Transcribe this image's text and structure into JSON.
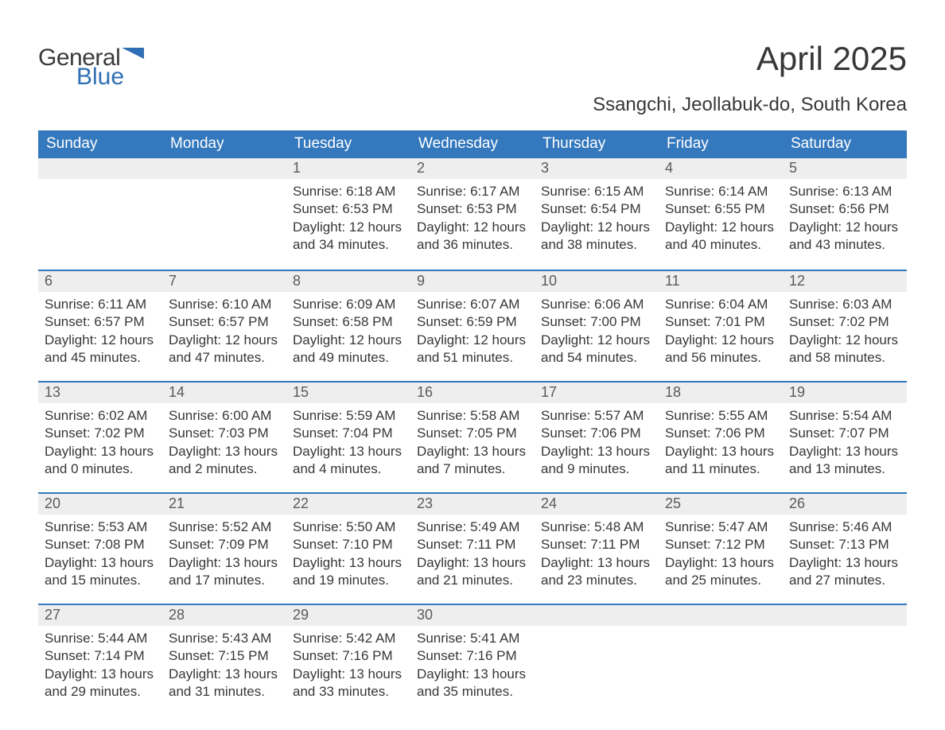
{
  "brand": {
    "general": "General",
    "blue": "Blue",
    "accent_color": "#2f6fb3"
  },
  "title": "April 2025",
  "subtitle": "Ssangchi, Jeollabuk-do, South Korea",
  "colors": {
    "header_bg": "#3478bd",
    "header_text": "#ffffff",
    "daynum_bg": "#eeeeee",
    "daynum_text": "#5a5a5a",
    "body_text": "#373737",
    "week_border": "#3478bd",
    "page_bg": "#ffffff"
  },
  "typography": {
    "title_fontsize": 42,
    "subtitle_fontsize": 24,
    "header_fontsize": 19,
    "daynum_fontsize": 18,
    "body_fontsize": 17
  },
  "day_headers": [
    "Sunday",
    "Monday",
    "Tuesday",
    "Wednesday",
    "Thursday",
    "Friday",
    "Saturday"
  ],
  "weeks": [
    [
      null,
      null,
      {
        "n": "1",
        "sunrise": "Sunrise: 6:18 AM",
        "sunset": "Sunset: 6:53 PM",
        "daylight": "Daylight: 12 hours and 34 minutes."
      },
      {
        "n": "2",
        "sunrise": "Sunrise: 6:17 AM",
        "sunset": "Sunset: 6:53 PM",
        "daylight": "Daylight: 12 hours and 36 minutes."
      },
      {
        "n": "3",
        "sunrise": "Sunrise: 6:15 AM",
        "sunset": "Sunset: 6:54 PM",
        "daylight": "Daylight: 12 hours and 38 minutes."
      },
      {
        "n": "4",
        "sunrise": "Sunrise: 6:14 AM",
        "sunset": "Sunset: 6:55 PM",
        "daylight": "Daylight: 12 hours and 40 minutes."
      },
      {
        "n": "5",
        "sunrise": "Sunrise: 6:13 AM",
        "sunset": "Sunset: 6:56 PM",
        "daylight": "Daylight: 12 hours and 43 minutes."
      }
    ],
    [
      {
        "n": "6",
        "sunrise": "Sunrise: 6:11 AM",
        "sunset": "Sunset: 6:57 PM",
        "daylight": "Daylight: 12 hours and 45 minutes."
      },
      {
        "n": "7",
        "sunrise": "Sunrise: 6:10 AM",
        "sunset": "Sunset: 6:57 PM",
        "daylight": "Daylight: 12 hours and 47 minutes."
      },
      {
        "n": "8",
        "sunrise": "Sunrise: 6:09 AM",
        "sunset": "Sunset: 6:58 PM",
        "daylight": "Daylight: 12 hours and 49 minutes."
      },
      {
        "n": "9",
        "sunrise": "Sunrise: 6:07 AM",
        "sunset": "Sunset: 6:59 PM",
        "daylight": "Daylight: 12 hours and 51 minutes."
      },
      {
        "n": "10",
        "sunrise": "Sunrise: 6:06 AM",
        "sunset": "Sunset: 7:00 PM",
        "daylight": "Daylight: 12 hours and 54 minutes."
      },
      {
        "n": "11",
        "sunrise": "Sunrise: 6:04 AM",
        "sunset": "Sunset: 7:01 PM",
        "daylight": "Daylight: 12 hours and 56 minutes."
      },
      {
        "n": "12",
        "sunrise": "Sunrise: 6:03 AM",
        "sunset": "Sunset: 7:02 PM",
        "daylight": "Daylight: 12 hours and 58 minutes."
      }
    ],
    [
      {
        "n": "13",
        "sunrise": "Sunrise: 6:02 AM",
        "sunset": "Sunset: 7:02 PM",
        "daylight": "Daylight: 13 hours and 0 minutes."
      },
      {
        "n": "14",
        "sunrise": "Sunrise: 6:00 AM",
        "sunset": "Sunset: 7:03 PM",
        "daylight": "Daylight: 13 hours and 2 minutes."
      },
      {
        "n": "15",
        "sunrise": "Sunrise: 5:59 AM",
        "sunset": "Sunset: 7:04 PM",
        "daylight": "Daylight: 13 hours and 4 minutes."
      },
      {
        "n": "16",
        "sunrise": "Sunrise: 5:58 AM",
        "sunset": "Sunset: 7:05 PM",
        "daylight": "Daylight: 13 hours and 7 minutes."
      },
      {
        "n": "17",
        "sunrise": "Sunrise: 5:57 AM",
        "sunset": "Sunset: 7:06 PM",
        "daylight": "Daylight: 13 hours and 9 minutes."
      },
      {
        "n": "18",
        "sunrise": "Sunrise: 5:55 AM",
        "sunset": "Sunset: 7:06 PM",
        "daylight": "Daylight: 13 hours and 11 minutes."
      },
      {
        "n": "19",
        "sunrise": "Sunrise: 5:54 AM",
        "sunset": "Sunset: 7:07 PM",
        "daylight": "Daylight: 13 hours and 13 minutes."
      }
    ],
    [
      {
        "n": "20",
        "sunrise": "Sunrise: 5:53 AM",
        "sunset": "Sunset: 7:08 PM",
        "daylight": "Daylight: 13 hours and 15 minutes."
      },
      {
        "n": "21",
        "sunrise": "Sunrise: 5:52 AM",
        "sunset": "Sunset: 7:09 PM",
        "daylight": "Daylight: 13 hours and 17 minutes."
      },
      {
        "n": "22",
        "sunrise": "Sunrise: 5:50 AM",
        "sunset": "Sunset: 7:10 PM",
        "daylight": "Daylight: 13 hours and 19 minutes."
      },
      {
        "n": "23",
        "sunrise": "Sunrise: 5:49 AM",
        "sunset": "Sunset: 7:11 PM",
        "daylight": "Daylight: 13 hours and 21 minutes."
      },
      {
        "n": "24",
        "sunrise": "Sunrise: 5:48 AM",
        "sunset": "Sunset: 7:11 PM",
        "daylight": "Daylight: 13 hours and 23 minutes."
      },
      {
        "n": "25",
        "sunrise": "Sunrise: 5:47 AM",
        "sunset": "Sunset: 7:12 PM",
        "daylight": "Daylight: 13 hours and 25 minutes."
      },
      {
        "n": "26",
        "sunrise": "Sunrise: 5:46 AM",
        "sunset": "Sunset: 7:13 PM",
        "daylight": "Daylight: 13 hours and 27 minutes."
      }
    ],
    [
      {
        "n": "27",
        "sunrise": "Sunrise: 5:44 AM",
        "sunset": "Sunset: 7:14 PM",
        "daylight": "Daylight: 13 hours and 29 minutes."
      },
      {
        "n": "28",
        "sunrise": "Sunrise: 5:43 AM",
        "sunset": "Sunset: 7:15 PM",
        "daylight": "Daylight: 13 hours and 31 minutes."
      },
      {
        "n": "29",
        "sunrise": "Sunrise: 5:42 AM",
        "sunset": "Sunset: 7:16 PM",
        "daylight": "Daylight: 13 hours and 33 minutes."
      },
      {
        "n": "30",
        "sunrise": "Sunrise: 5:41 AM",
        "sunset": "Sunset: 7:16 PM",
        "daylight": "Daylight: 13 hours and 35 minutes."
      },
      null,
      null,
      null
    ]
  ]
}
